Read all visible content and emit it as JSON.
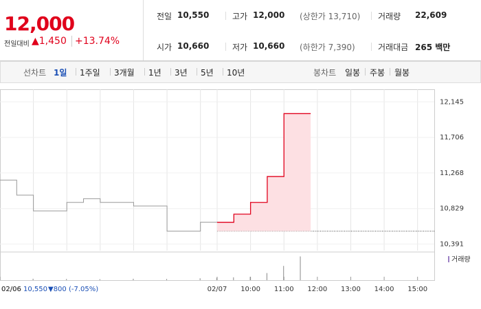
{
  "quote": {
    "price": "12,000",
    "change_caption": "전일대비",
    "change": "▲1,450",
    "change_pct": "+13.74%"
  },
  "stats": [
    [
      {
        "label": "전일",
        "value": "10,550"
      },
      {
        "label": "고가",
        "value": "12,000",
        "note": "(상한가 13,710)"
      },
      {
        "label": "거래량",
        "value": "22,609"
      }
    ],
    [
      {
        "label": "시가",
        "value": "10,660"
      },
      {
        "label": "저가",
        "value": "10,660",
        "note": "(하한가 7,390)"
      },
      {
        "label": "거래대금",
        "value": "265 백만"
      }
    ]
  ],
  "tabs": {
    "line_caption": "선차트",
    "line": [
      "1일",
      "1주일",
      "3개월",
      "1년",
      "3년",
      "5년",
      "10년"
    ],
    "candle_caption": "봉차트",
    "candle": [
      "일봉",
      "주봉",
      "월봉"
    ]
  },
  "chart_data": {
    "type": "line",
    "xlim": [
      0,
      26
    ],
    "xticks": [
      {
        "value": 0,
        "label": "02/06"
      },
      {
        "value": 13,
        "label": "02/07"
      },
      {
        "value": 15,
        "label": "10:00"
      },
      {
        "value": 17,
        "label": "11:00"
      },
      {
        "value": 19,
        "label": "12:00"
      },
      {
        "value": 21,
        "label": "13:00"
      },
      {
        "value": 23,
        "label": "14:00"
      },
      {
        "value": 25,
        "label": "15:00"
      }
    ],
    "ylim": [
      10310,
      12300
    ],
    "yticks": [
      {
        "value": 10391,
        "label": "10,391"
      },
      {
        "value": 10829,
        "label": "10,829"
      },
      {
        "value": 11268,
        "label": "11,268"
      },
      {
        "value": 11706,
        "label": "11,706"
      },
      {
        "value": 12145,
        "label": "12,145"
      }
    ],
    "series": [
      {
        "name": "02/06",
        "color": "#999999",
        "x": [
          0,
          1,
          2,
          3,
          4,
          5,
          6,
          7,
          8,
          9,
          10,
          11,
          12
        ],
        "values": [
          11180,
          10995,
          10800,
          10800,
          10905,
          10950,
          10905,
          10905,
          10860,
          10860,
          10550,
          10550,
          10660
        ]
      },
      {
        "name": "02/07",
        "color": "#e0001b",
        "x": [
          13,
          14,
          15,
          16,
          17
        ],
        "values": [
          10660,
          10760,
          10905,
          11224,
          12000
        ]
      }
    ],
    "prev_close": 10550,
    "volume_legend": "거래량",
    "volume": {
      "x": [
        2,
        4,
        6,
        8,
        10,
        12,
        13,
        14,
        15,
        16,
        17,
        18
      ],
      "values": [
        300,
        250,
        200,
        300,
        250,
        400,
        500,
        600,
        700,
        1500,
        3000,
        5000
      ],
      "ylim": [
        0,
        5500
      ]
    },
    "footer": {
      "date": "02/06",
      "close": "10,550",
      "change": "▼800",
      "change_pct": "(-7.05%)"
    }
  }
}
